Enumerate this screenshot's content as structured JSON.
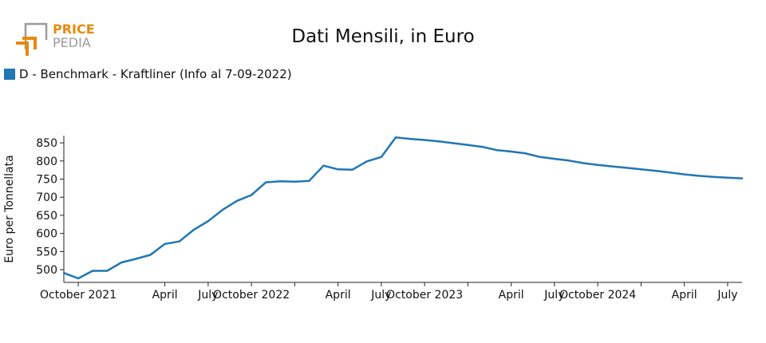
{
  "logo": {
    "line1": "PRICE",
    "line2": "PEDIA",
    "accent": "#e8890c",
    "grey": "#9a9a9a"
  },
  "title": "Dati Mensili, in Euro",
  "legend": {
    "label": "D - Benchmark - Kraftliner (Info al 7-09-2022)",
    "color": "#1f77b4"
  },
  "chart_data": {
    "type": "line",
    "title": "Dati Mensili, in Euro",
    "ylabel": "Euro per Tonnellata",
    "xlabel": "",
    "ylim": [
      465,
      870
    ],
    "xlim": [
      "2021-09",
      "2025-08"
    ],
    "yticks": [
      500,
      550,
      600,
      650,
      700,
      750,
      800,
      850
    ],
    "xticks": [
      {
        "x": "2021-10",
        "label": "October 2021"
      },
      {
        "x": "2022-04",
        "label": "April"
      },
      {
        "x": "2022-07",
        "label": "July"
      },
      {
        "x": "2022-10",
        "label": "October 2022"
      },
      {
        "x": "2023-01",
        "label": ""
      },
      {
        "x": "2023-04",
        "label": "April"
      },
      {
        "x": "2023-07",
        "label": "July"
      },
      {
        "x": "2023-10",
        "label": "October 2023"
      },
      {
        "x": "2024-01",
        "label": ""
      },
      {
        "x": "2024-04",
        "label": "April"
      },
      {
        "x": "2024-07",
        "label": "July"
      },
      {
        "x": "2024-10",
        "label": "October 2024"
      },
      {
        "x": "2025-01",
        "label": ""
      },
      {
        "x": "2025-04",
        "label": "April"
      },
      {
        "x": "2025-07",
        "label": "July"
      }
    ],
    "grid": false,
    "legend_position": "top-left",
    "series": [
      {
        "name": "D - Benchmark - Kraftliner (Info al 7-09-2022)",
        "color": "#1f77b4",
        "x": [
          "2021-09",
          "2021-10",
          "2021-11",
          "2021-12",
          "2022-01",
          "2022-02",
          "2022-03",
          "2022-04",
          "2022-05",
          "2022-06",
          "2022-07",
          "2022-08",
          "2022-09",
          "2022-10",
          "2022-11",
          "2022-12",
          "2023-01",
          "2023-02",
          "2023-03",
          "2023-04",
          "2023-05",
          "2023-06",
          "2023-07",
          "2023-08",
          "2023-09",
          "2023-10",
          "2023-11",
          "2023-12",
          "2024-01",
          "2024-02",
          "2024-03",
          "2024-04",
          "2024-05",
          "2024-06",
          "2024-07",
          "2024-08",
          "2024-09",
          "2024-10",
          "2024-11",
          "2024-12",
          "2025-01",
          "2025-02",
          "2025-03",
          "2025-04",
          "2025-05",
          "2025-06",
          "2025-07",
          "2025-08"
        ],
        "values": [
          491,
          476,
          497,
          497,
          520,
          530,
          541,
          571,
          578,
          610,
          634,
          665,
          690,
          706,
          741,
          744,
          743,
          745,
          787,
          777,
          776,
          799,
          811,
          865,
          861,
          858,
          854,
          849,
          844,
          839,
          830,
          826,
          821,
          811,
          806,
          801,
          794,
          789,
          785,
          781,
          777,
          773,
          768,
          763,
          759,
          756,
          754,
          752
        ]
      }
    ]
  }
}
